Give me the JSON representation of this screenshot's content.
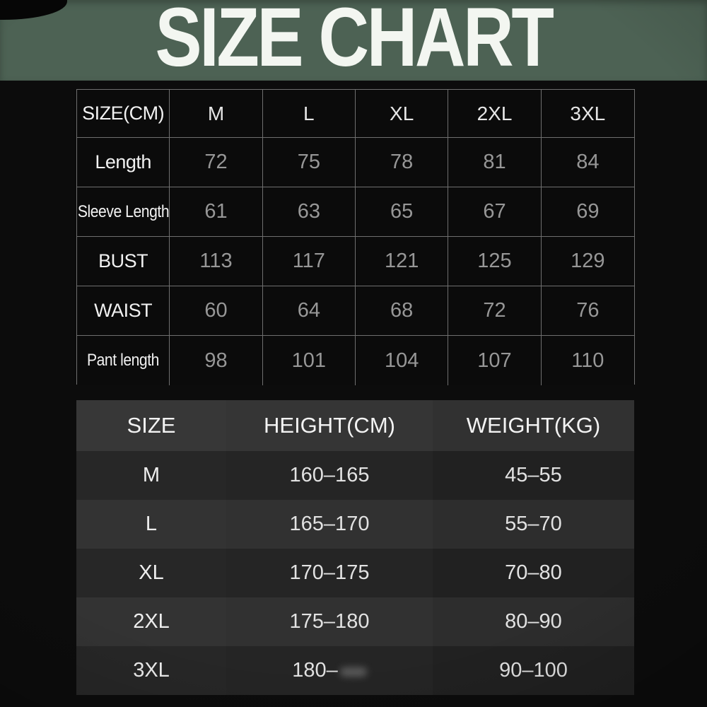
{
  "title": "SIZE CHART",
  "colors": {
    "banner_green": "#4d6254",
    "background_black": "#0c0c0c",
    "table_border_gray": "#6f6f6f",
    "value_gray": "#979797",
    "label_white": "#f1f1f1"
  },
  "chart_data": [
    {
      "type": "table",
      "title": "SIZE CHART",
      "unit": "cm",
      "columns": [
        "SIZE(CM)",
        "M",
        "L",
        "XL",
        "2XL",
        "3XL"
      ],
      "rows": [
        [
          "Length",
          "72",
          "75",
          "78",
          "81",
          "84"
        ],
        [
          "Sleeve Length",
          "61",
          "63",
          "65",
          "67",
          "69"
        ],
        [
          "BUST",
          "113",
          "117",
          "121",
          "125",
          "129"
        ],
        [
          "WAIST",
          "60",
          "64",
          "68",
          "72",
          "76"
        ],
        [
          "Pant length",
          "98",
          "101",
          "104",
          "107",
          "110"
        ]
      ]
    },
    {
      "type": "table",
      "title": "",
      "columns": [
        "SIZE",
        "HEIGHT(CM)",
        "WEIGHT(KG)"
      ],
      "rows": [
        [
          "M",
          "160–165",
          "45–55"
        ],
        [
          "L",
          "165–170",
          "55–70"
        ],
        [
          "XL",
          "170–175",
          "70–80"
        ],
        [
          "2XL",
          "175–180",
          "80–90"
        ],
        [
          "3XL",
          "180–",
          "90–100"
        ]
      ]
    }
  ]
}
